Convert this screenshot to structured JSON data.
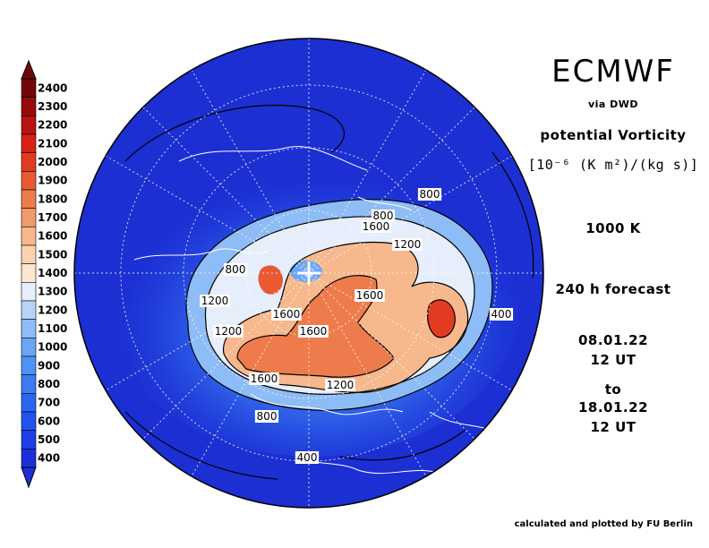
{
  "header": {
    "title": "ECMWF",
    "source": "via DWD",
    "parameter": "potential Vorticity",
    "units": "[10⁻⁶ (K m²)/(kg s)]",
    "level": "1000 K",
    "forecast": "240 h forecast",
    "from_date": "08.01.22",
    "from_time": "12 UT",
    "to_label": "to",
    "to_date": "18.01.22",
    "to_time": "12 UT"
  },
  "footer": {
    "credit": "calculated and plotted by FU Berlin"
  },
  "colorbar": {
    "levels": [
      "400",
      "500",
      "600",
      "700",
      "800",
      "900",
      "1000",
      "1100",
      "1200",
      "1300",
      "1400",
      "1500",
      "1600",
      "1700",
      "1800",
      "1900",
      "2000",
      "2100",
      "2200",
      "2300",
      "2400"
    ],
    "colors": [
      "#1a2fd8",
      "#1e3ee6",
      "#2252f0",
      "#2a66f2",
      "#3a7cf4",
      "#4f92f5",
      "#6aa6f6",
      "#8ebcf6",
      "#b6d4f8",
      "#e6eefb",
      "#fbe6cf",
      "#f9d3b0",
      "#f6b88c",
      "#f29a69",
      "#ee7b4c",
      "#e95a33",
      "#e33a22",
      "#d62018",
      "#b81212",
      "#960a0a",
      "#720606"
    ]
  },
  "map": {
    "projection": "north polar stereographic",
    "background_color": "#1c2fd2",
    "contour_labels": [
      {
        "text": "800"
      },
      {
        "text": "800"
      },
      {
        "text": "1600"
      },
      {
        "text": "1200"
      },
      {
        "text": "800"
      },
      {
        "text": "1200"
      },
      {
        "text": "1600"
      },
      {
        "text": "1200"
      },
      {
        "text": "1600"
      },
      {
        "text": "1600"
      },
      {
        "text": "1600"
      },
      {
        "text": "1200"
      },
      {
        "text": "400"
      },
      {
        "text": "800"
      },
      {
        "text": "400"
      }
    ]
  }
}
